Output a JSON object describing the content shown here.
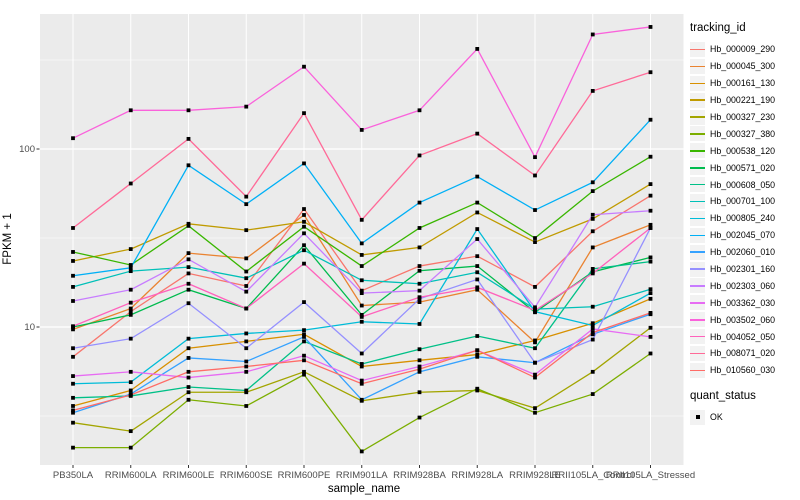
{
  "chart_data": {
    "type": "line",
    "title": "",
    "xlabel": "sample_name",
    "ylabel": "FPKM + 1",
    "y_scale": "log10",
    "ylim": [
      1.6,
      600
    ],
    "grid": true,
    "legend_position": "right",
    "y_ticks": [
      {
        "label": "100",
        "value": 100
      },
      {
        "label": "10",
        "value": 10
      }
    ],
    "y_minor_gridlines": [
      316.2,
      31.62,
      3.162
    ],
    "categories": [
      "PB350LA",
      "RRIM600LA",
      "RRIM600LE",
      "RRIM600SE",
      "RRIM600PE",
      "RRIM901LA",
      "RRIM928BA",
      "RRIM928LA",
      "RRIM928LE",
      "RRII105LA_Control",
      "RRII105LA_Stressed"
    ],
    "legend_title": "tracking_id",
    "point_marker": {
      "shape": "square",
      "color": "#000000"
    },
    "panel_bg": "#EBEBEB",
    "grid_color": "#FFFFFF",
    "tick_text_color": "#4D4D4D",
    "series": [
      {
        "name": "Hb_000009_290",
        "color": "#F8766D",
        "values": [
          6.8,
          12.2,
          20,
          17,
          46,
          16,
          22,
          25,
          16.8,
          34.5,
          54.7
        ]
      },
      {
        "name": "Hb_000045_300",
        "color": "#EA8331",
        "values": [
          9.7,
          12.7,
          26,
          24.3,
          42.6,
          13.2,
          13.8,
          16.2,
          8.2,
          28,
          37.5
        ]
      },
      {
        "name": "Hb_000161_130",
        "color": "#D89000",
        "values": [
          3.6,
          4.4,
          7.6,
          8.3,
          9.1,
          6.0,
          6.5,
          7.0,
          8.4,
          10.5,
          14.4
        ]
      },
      {
        "name": "Hb_000221_190",
        "color": "#C09B00",
        "values": [
          23.5,
          27.4,
          38,
          35,
          39,
          25.4,
          28,
          44,
          30,
          40.5,
          63.5
        ]
      },
      {
        "name": "Hb_000327_230",
        "color": "#A3A500",
        "values": [
          2.9,
          2.6,
          4.3,
          4.3,
          5.6,
          3.85,
          4.3,
          4.4,
          3.5,
          5.6,
          9.9
        ]
      },
      {
        "name": "Hb_000327_380",
        "color": "#7CAE00",
        "values": [
          2.1,
          2.1,
          3.9,
          3.6,
          5.4,
          2.0,
          3.1,
          4.5,
          3.3,
          4.2,
          7.1
        ]
      },
      {
        "name": "Hb_000538_120",
        "color": "#39B600",
        "values": [
          26.4,
          22.3,
          37,
          20.5,
          36.6,
          22,
          36,
          50,
          31.6,
          58,
          90.5
        ]
      },
      {
        "name": "Hb_000571_020",
        "color": "#00BB4E",
        "values": [
          10,
          11.7,
          16.2,
          12.7,
          28.8,
          11.7,
          20.7,
          22,
          12.1,
          20.4,
          24.6
        ]
      },
      {
        "name": "Hb_000608_050",
        "color": "#00C087",
        "values": [
          4.0,
          4.1,
          4.6,
          4.4,
          8.3,
          6.2,
          7.5,
          8.9,
          7.6,
          21.2,
          23.3
        ]
      },
      {
        "name": "Hb_000701_100",
        "color": "#00C0B8",
        "values": [
          16.8,
          20.6,
          21.7,
          18.8,
          27,
          18.3,
          17.5,
          20.3,
          12.6,
          13,
          16.3
        ]
      },
      {
        "name": "Hb_000805_240",
        "color": "#00BCD8",
        "values": [
          4.8,
          4.9,
          8.6,
          9.2,
          9.6,
          10.7,
          10.4,
          35.5,
          12.2,
          10.2,
          15.5
        ]
      },
      {
        "name": "Hb_002045_070",
        "color": "#00B0F6",
        "values": [
          19.4,
          21.5,
          81,
          49,
          83,
          29.5,
          50,
          70,
          45.4,
          65,
          146
        ]
      },
      {
        "name": "Hb_002060_010",
        "color": "#35A2FF",
        "values": [
          3.3,
          4.2,
          6.7,
          6.4,
          8.8,
          3.9,
          5.6,
          6.8,
          6.3,
          9.1,
          11.8
        ]
      },
      {
        "name": "Hb_002301_160",
        "color": "#9590FF",
        "values": [
          7.6,
          8.6,
          13.6,
          7.6,
          13.8,
          7.1,
          14.4,
          18.5,
          6.3,
          8.5,
          36
        ]
      },
      {
        "name": "Hb_002303_060",
        "color": "#C77CFF",
        "values": [
          14,
          16.2,
          24,
          15.8,
          33.6,
          15.5,
          16,
          31.2,
          12.9,
          42.7,
          45
        ]
      },
      {
        "name": "Hb_003362_030",
        "color": "#E76BF3",
        "values": [
          5.3,
          5.6,
          5.2,
          5.6,
          6.9,
          5.0,
          6.0,
          7.4,
          5.4,
          9.75,
          8.8
        ]
      },
      {
        "name": "Hb_003502_060",
        "color": "#FA62DB",
        "values": [
          115,
          165,
          165,
          173,
          290,
          128,
          165,
          365,
          90,
          440,
          485
        ]
      },
      {
        "name": "Hb_004052_050",
        "color": "#FF62BC",
        "values": [
          10.1,
          13.7,
          17.5,
          12.7,
          22.7,
          11.4,
          14.7,
          16.7,
          12.4,
          20,
          36
        ]
      },
      {
        "name": "Hb_008071_020",
        "color": "#FF6A98",
        "values": [
          36,
          64,
          114,
          54,
          159,
          40,
          92,
          122,
          71,
          212,
          270
        ]
      },
      {
        "name": "Hb_010560_030",
        "color": "#FF6C67",
        "values": [
          3.4,
          4.15,
          5.6,
          6.0,
          6.5,
          4.8,
          5.8,
          7.4,
          5.2,
          9.3,
          12
        ]
      }
    ],
    "quant_legend": {
      "title": "quant_status",
      "items": [
        {
          "label": "OK",
          "marker": "black-square"
        }
      ]
    }
  }
}
